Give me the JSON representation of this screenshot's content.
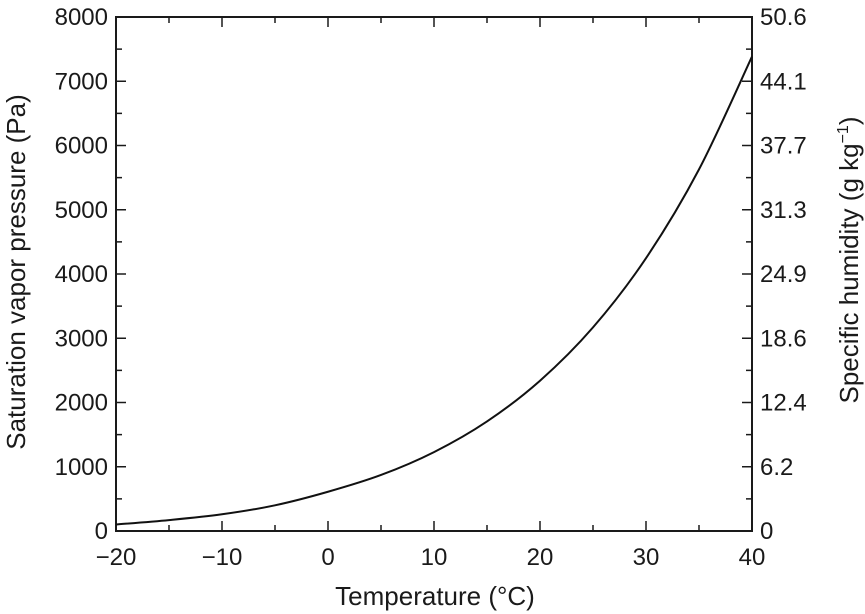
{
  "chart_data": {
    "type": "line",
    "xlabel": "Temperature (°C)",
    "ylabel": "Saturation vapor pressure (Pa)",
    "y2label": {
      "prefix": "Specific humidity (g kg",
      "superscript": "−1",
      "suffix": ")"
    },
    "xlim": [
      -20,
      40
    ],
    "ylim": [
      0,
      8000
    ],
    "x_ticks": [
      -20,
      -10,
      0,
      10,
      20,
      30,
      40
    ],
    "x_tick_labels": [
      "−20",
      "−10",
      "0",
      "10",
      "20",
      "30",
      "40"
    ],
    "y_ticks": [
      0,
      1000,
      2000,
      3000,
      4000,
      5000,
      6000,
      7000,
      8000
    ],
    "y_tick_labels": [
      "0",
      "1000",
      "2000",
      "3000",
      "4000",
      "5000",
      "6000",
      "7000",
      "8000"
    ],
    "y2_ticks": [
      0,
      1000,
      2000,
      3000,
      4000,
      5000,
      6000,
      7000,
      8000
    ],
    "y2_tick_labels": [
      "0",
      "6.2",
      "12.4",
      "18.6",
      "24.9",
      "31.3",
      "37.7",
      "44.1",
      "50.6"
    ],
    "grid": false,
    "series": [
      {
        "x": [
          -20,
          -15,
          -10,
          -5,
          0,
          5,
          10,
          15,
          20,
          25,
          30,
          35,
          40
        ],
        "y": [
          102,
          170,
          260,
          400,
          611,
          872,
          1228,
          1705,
          2339,
          3169,
          4246,
          5628,
          7384
        ]
      }
    ],
    "colors": {
      "line": "#111111",
      "axes": "#1a1a1a"
    }
  }
}
